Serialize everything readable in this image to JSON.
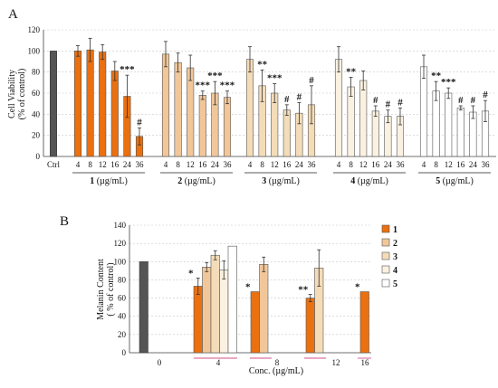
{
  "chart_data": [
    {
      "panel_label": "A",
      "type": "bar",
      "ylabel": "Cell Viability (% of control)",
      "ylabel_lines": [
        "Cell Viability",
        "(% of control)"
      ],
      "ylim": [
        0,
        120
      ],
      "yticks": [
        0,
        20,
        40,
        60,
        80,
        100,
        120
      ],
      "grid": "horizontal dashed",
      "control": {
        "label": "Ctrl",
        "value": 100,
        "color": "#555555"
      },
      "colors": {
        "1": "#ea7010",
        "2": "#f1c79a",
        "3": "#f4dcb8",
        "4": "#fbf1e1",
        "5": "#ffffff"
      },
      "groups": [
        {
          "compound": "1",
          "label_num": "1",
          "label_unit": " (µg/mL)",
          "categories": [
            "4",
            "8",
            "12",
            "16",
            "24",
            "36"
          ],
          "values": [
            100,
            101,
            99,
            81,
            57,
            19
          ],
          "errors": [
            5,
            11,
            7,
            9,
            20,
            8
          ],
          "significance": [
            "",
            "",
            "",
            "",
            "***",
            "#"
          ]
        },
        {
          "compound": "2",
          "label_num": "2",
          "label_unit": " (µg/mL)",
          "categories": [
            "4",
            "8",
            "12",
            "16",
            "24",
            "36"
          ],
          "values": [
            97,
            89,
            84,
            58,
            60,
            56
          ],
          "errors": [
            12,
            9,
            12,
            4,
            11,
            6
          ],
          "significance": [
            "",
            "",
            "",
            "***",
            "***",
            "***"
          ]
        },
        {
          "compound": "3",
          "label_num": "3",
          "label_unit": " (µg/mL)",
          "categories": [
            "4",
            "8",
            "12",
            "16",
            "24",
            "36"
          ],
          "values": [
            92,
            67,
            60,
            44,
            41,
            49
          ],
          "errors": [
            12,
            15,
            9,
            5,
            10,
            18
          ],
          "significance": [
            "",
            "**",
            "***",
            "#",
            "#",
            "#"
          ]
        },
        {
          "compound": "4",
          "label_num": "4",
          "label_unit": " (µg/mL)",
          "categories": [
            "4",
            "8",
            "12",
            "16",
            "24",
            "36"
          ],
          "values": [
            92,
            66,
            72,
            43,
            38,
            38
          ],
          "errors": [
            12,
            9,
            9,
            5,
            6,
            8
          ],
          "significance": [
            "",
            "**",
            "",
            "#",
            "#",
            "#"
          ]
        },
        {
          "compound": "5",
          "label_num": "5",
          "label_unit": " (µg/mL)",
          "categories": [
            "4",
            "8",
            "12",
            "16",
            "24",
            "36"
          ],
          "values": [
            85,
            62,
            60,
            46,
            42,
            43
          ],
          "errors": [
            11,
            9,
            5,
            2,
            6,
            10
          ],
          "significance": [
            "",
            "**",
            "***",
            "#",
            "#",
            "#"
          ]
        }
      ]
    },
    {
      "panel_label": "B",
      "type": "bar",
      "xlabel": "Conc. (µg/mL)",
      "ylabel": "Melanin Content ( % of control)",
      "ylabel_lines": [
        "Melanin Content",
        "( % of control)"
      ],
      "ylim": [
        0,
        140
      ],
      "yticks": [
        0,
        20,
        40,
        60,
        80,
        100,
        120,
        140
      ],
      "grid": "horizontal dashed",
      "legend_position": "right",
      "categories": [
        "0",
        "4",
        "8",
        "12",
        "16"
      ],
      "control": {
        "value": 100,
        "color": "#555555"
      },
      "series": [
        {
          "name": "1",
          "color": "#ea7010",
          "values": [
            null,
            73,
            67,
            60,
            67
          ],
          "errors": [
            null,
            9,
            null,
            4,
            null
          ],
          "significance": [
            "",
            "*",
            "*",
            "**",
            "*"
          ]
        },
        {
          "name": "2",
          "color": "#f1c79a",
          "values": [
            null,
            94,
            97,
            null,
            null
          ],
          "errors": [
            null,
            5,
            8,
            null,
            null
          ]
        },
        {
          "name": "3",
          "color": "#f4dcb8",
          "values": [
            null,
            107,
            null,
            93,
            null
          ],
          "errors": [
            null,
            5,
            null,
            20,
            null
          ]
        },
        {
          "name": "4",
          "color": "#fbf1e1",
          "values": [
            null,
            91,
            null,
            null,
            null
          ],
          "errors": [
            null,
            10,
            null,
            null,
            null
          ]
        },
        {
          "name": "5",
          "color": "#ffffff",
          "values": [
            null,
            117,
            null,
            null,
            null
          ],
          "errors": [
            null,
            null,
            null,
            null,
            null
          ]
        }
      ]
    }
  ]
}
